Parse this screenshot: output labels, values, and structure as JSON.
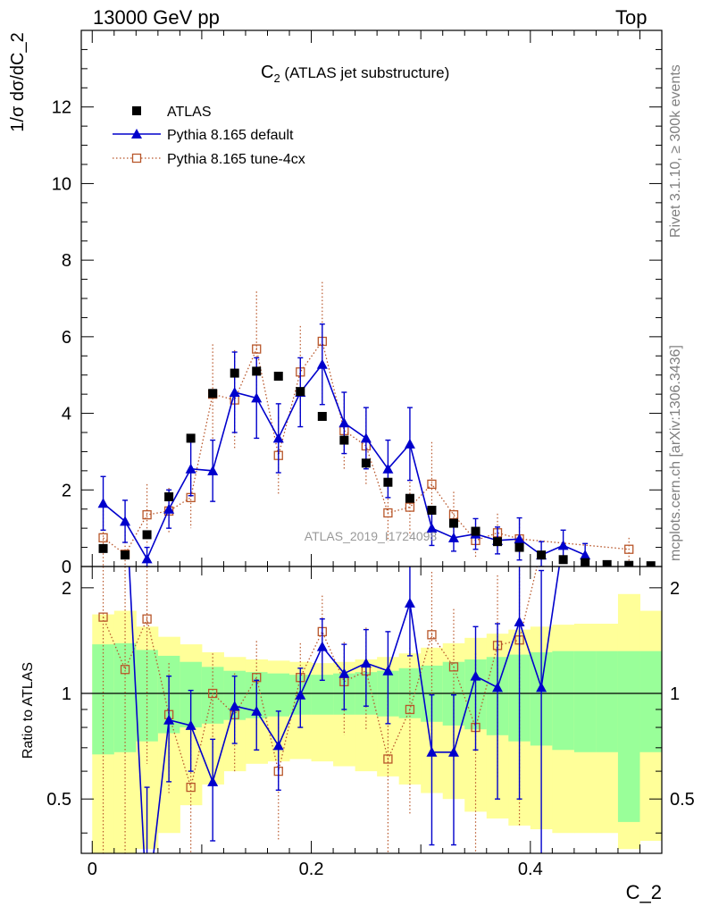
{
  "header": {
    "left": "13000 GeV pp",
    "right": "Top"
  },
  "side_labels": {
    "rivet": "Rivet 3.1.10, ≥ 300k events",
    "mcplots": "mcplots.cern.ch [arXiv:1306.3436]"
  },
  "chart_data": {
    "type": "scatter",
    "title_main": "C",
    "title_sub": "2",
    "title_rest": " (ATLAS jet substructure)",
    "watermark": "ATLAS_2019_I1724098",
    "xlabel": "C_2",
    "ylabel_main": "1/σ dσ/dC_2",
    "ylabel_ratio": "Ratio to ATLAS",
    "xlim": [
      -0.01,
      0.52
    ],
    "ylim_main": [
      0,
      14
    ],
    "ylim_ratio": [
      0.35,
      2.3
    ],
    "xticks": [
      "0",
      "0.2",
      "0.4"
    ],
    "yticks_main": [
      "0",
      "2",
      "4",
      "6",
      "8",
      "10",
      "12"
    ],
    "yticks_ratio": [
      "0.5",
      "1",
      "2"
    ],
    "legend_position": "top-left",
    "series": [
      {
        "name": "ATLAS",
        "color": "#000000",
        "marker": "filled-square",
        "x": [
          0.01,
          0.03,
          0.05,
          0.07,
          0.09,
          0.11,
          0.13,
          0.15,
          0.17,
          0.19,
          0.21,
          0.23,
          0.25,
          0.27,
          0.29,
          0.31,
          0.33,
          0.35,
          0.37,
          0.39,
          0.41,
          0.43,
          0.45,
          0.47,
          0.49,
          0.51
        ],
        "y": [
          0.47,
          0.3,
          0.83,
          1.82,
          3.35,
          4.52,
          5.05,
          5.1,
          4.97,
          4.57,
          3.92,
          3.3,
          2.7,
          2.2,
          1.78,
          1.47,
          1.13,
          0.92,
          0.65,
          0.5,
          0.3,
          0.18,
          0.1,
          0.05,
          0.03,
          0.02
        ]
      },
      {
        "name": "Pythia 8.165 default",
        "color": "#0000cc",
        "marker": "filled-triangle",
        "x": [
          0.01,
          0.03,
          0.05,
          0.07,
          0.09,
          0.11,
          0.13,
          0.15,
          0.17,
          0.19,
          0.21,
          0.23,
          0.25,
          0.27,
          0.29,
          0.31,
          0.33,
          0.35,
          0.37,
          0.39,
          0.41,
          0.43,
          0.45
        ],
        "y": [
          1.65,
          1.18,
          0.2,
          1.5,
          2.55,
          2.5,
          4.55,
          4.4,
          3.35,
          4.55,
          5.28,
          3.75,
          3.35,
          2.55,
          3.2,
          1.0,
          0.75,
          0.85,
          0.68,
          0.72,
          0.3,
          0.55,
          0.3
        ],
        "yerr": [
          0.7,
          0.55,
          0.3,
          0.5,
          0.7,
          0.8,
          1.05,
          1.05,
          0.9,
          0.9,
          1.05,
          0.8,
          0.8,
          0.75,
          0.95,
          0.45,
          0.35,
          0.4,
          0.35,
          0.55,
          0.35,
          0.4,
          0.3
        ],
        "ratio": [
          3.5,
          3.9,
          0.24,
          0.84,
          0.81,
          0.56,
          0.92,
          0.89,
          0.71,
          0.99,
          1.36,
          1.14,
          1.22,
          1.16,
          1.81,
          0.68,
          0.68,
          1.12,
          1.04,
          1.6,
          1.04
        ],
        "ratio_err": [
          0.0,
          0.0,
          0.3,
          0.28,
          0.21,
          0.18,
          0.2,
          0.2,
          0.18,
          0.19,
          0.27,
          0.24,
          0.3,
          0.34,
          0.53,
          0.31,
          0.31,
          0.43,
          0.54,
          1.1,
          1.2
        ]
      },
      {
        "name": "Pythia 8.165 tune-4cx",
        "color": "#b8562a",
        "marker": "open-square",
        "x": [
          0.01,
          0.03,
          0.05,
          0.07,
          0.09,
          0.11,
          0.13,
          0.15,
          0.17,
          0.19,
          0.21,
          0.23,
          0.25,
          0.27,
          0.29,
          0.31,
          0.33,
          0.35,
          0.37,
          0.39,
          0.49
        ],
        "y": [
          0.75,
          0.32,
          1.35,
          1.45,
          1.8,
          4.5,
          4.35,
          5.68,
          2.9,
          5.08,
          5.88,
          3.55,
          3.15,
          1.4,
          1.55,
          2.15,
          1.35,
          0.68,
          0.88,
          0.72,
          0.45
        ],
        "yerr": [
          0.9,
          0.6,
          0.8,
          0.6,
          0.8,
          1.3,
          1.3,
          1.5,
          1.0,
          1.2,
          1.55,
          1.0,
          1.0,
          0.75,
          0.75,
          1.1,
          0.6,
          0.45,
          0.5,
          0.5,
          0.3
        ],
        "ratio": [
          1.65,
          1.17,
          1.63,
          0.87,
          0.54,
          1.0,
          0.87,
          1.11,
          0.6,
          1.11,
          1.5,
          1.08,
          1.16,
          0.65,
          0.9,
          1.47,
          1.19,
          0.8,
          1.37,
          1.42
        ],
        "ratio_err": [
          1.9,
          2.0,
          1.0,
          0.35,
          0.25,
          0.3,
          0.27,
          0.3,
          0.22,
          0.28,
          0.4,
          0.32,
          0.38,
          0.35,
          0.45,
          0.75,
          0.55,
          0.5,
          0.8,
          1.0
        ]
      }
    ],
    "uncertainty_bands": {
      "green_color": "#99ff99",
      "yellow_color": "#ffff99",
      "edges": [
        0.0,
        0.02,
        0.04,
        0.06,
        0.08,
        0.1,
        0.12,
        0.14,
        0.16,
        0.18,
        0.2,
        0.22,
        0.24,
        0.26,
        0.28,
        0.3,
        0.32,
        0.34,
        0.36,
        0.38,
        0.4,
        0.42,
        0.44,
        0.46,
        0.48,
        0.5,
        0.52
      ],
      "green_lo": [
        0.67,
        0.68,
        0.73,
        0.77,
        0.8,
        0.82,
        0.84,
        0.85,
        0.86,
        0.87,
        0.87,
        0.87,
        0.87,
        0.86,
        0.85,
        0.83,
        0.81,
        0.79,
        0.76,
        0.73,
        0.71,
        0.69,
        0.68,
        0.68,
        0.43,
        0.68
      ],
      "green_hi": [
        1.38,
        1.39,
        1.33,
        1.28,
        1.23,
        1.19,
        1.16,
        1.15,
        1.14,
        1.13,
        1.13,
        1.14,
        1.15,
        1.16,
        1.18,
        1.2,
        1.23,
        1.25,
        1.27,
        1.29,
        1.31,
        1.32,
        1.32,
        1.32,
        1.32,
        1.32
      ],
      "yellow_lo": [
        0.35,
        0.35,
        0.36,
        0.4,
        0.48,
        0.55,
        0.6,
        0.63,
        0.64,
        0.65,
        0.64,
        0.62,
        0.6,
        0.58,
        0.55,
        0.52,
        0.5,
        0.46,
        0.44,
        0.42,
        0.41,
        0.4,
        0.4,
        0.4,
        0.36,
        0.38
      ],
      "yellow_hi": [
        1.68,
        1.72,
        1.55,
        1.45,
        1.38,
        1.31,
        1.27,
        1.25,
        1.24,
        1.23,
        1.22,
        1.23,
        1.25,
        1.27,
        1.3,
        1.35,
        1.39,
        1.44,
        1.48,
        1.52,
        1.55,
        1.57,
        1.58,
        1.58,
        1.92,
        1.72
      ]
    }
  }
}
